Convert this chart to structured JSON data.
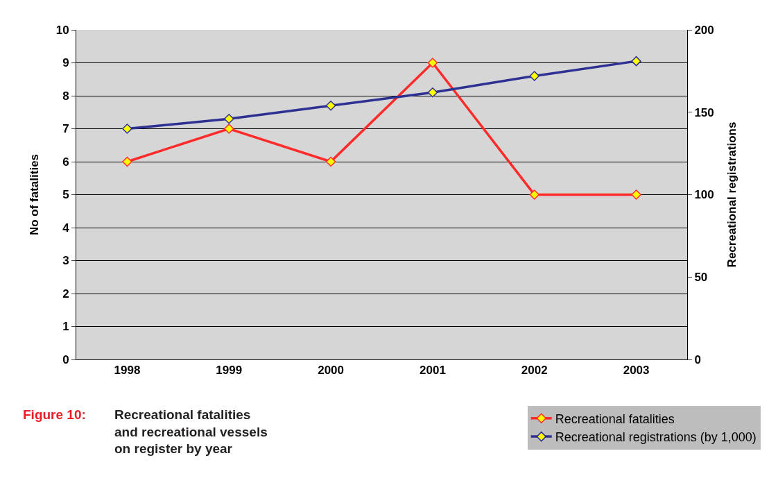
{
  "chart_data": {
    "type": "line",
    "title": "Recreational fatalities\nand recreational vessels\non register by year",
    "annotations": [
      "Figure 10:"
    ],
    "ylabel": "No of fatalities",
    "y2label": "Recreational registrations",
    "categories": [
      "1998",
      "1999",
      "2000",
      "2001",
      "2002",
      "2003"
    ],
    "series": [
      {
        "name": "Recreational fatalities",
        "color": "#ff2a2a",
        "values": [
          6,
          7,
          6,
          9,
          5,
          5
        ]
      },
      {
        "name": "Recreational registrations (by 1,000)",
        "color": "#2e3192",
        "axis": "y2",
        "values": [
          140,
          146,
          154,
          162,
          172,
          181
        ]
      }
    ],
    "ylim": [
      0,
      10
    ],
    "yticks": [
      0,
      1,
      2,
      3,
      4,
      5,
      6,
      7,
      8,
      9,
      10
    ],
    "y2lim": [
      0,
      200
    ],
    "y2ticks": [
      0,
      50,
      100,
      150,
      200
    ],
    "grid": "y",
    "legend": "bottom right",
    "marker": "diamond",
    "line_style": "solid"
  }
}
